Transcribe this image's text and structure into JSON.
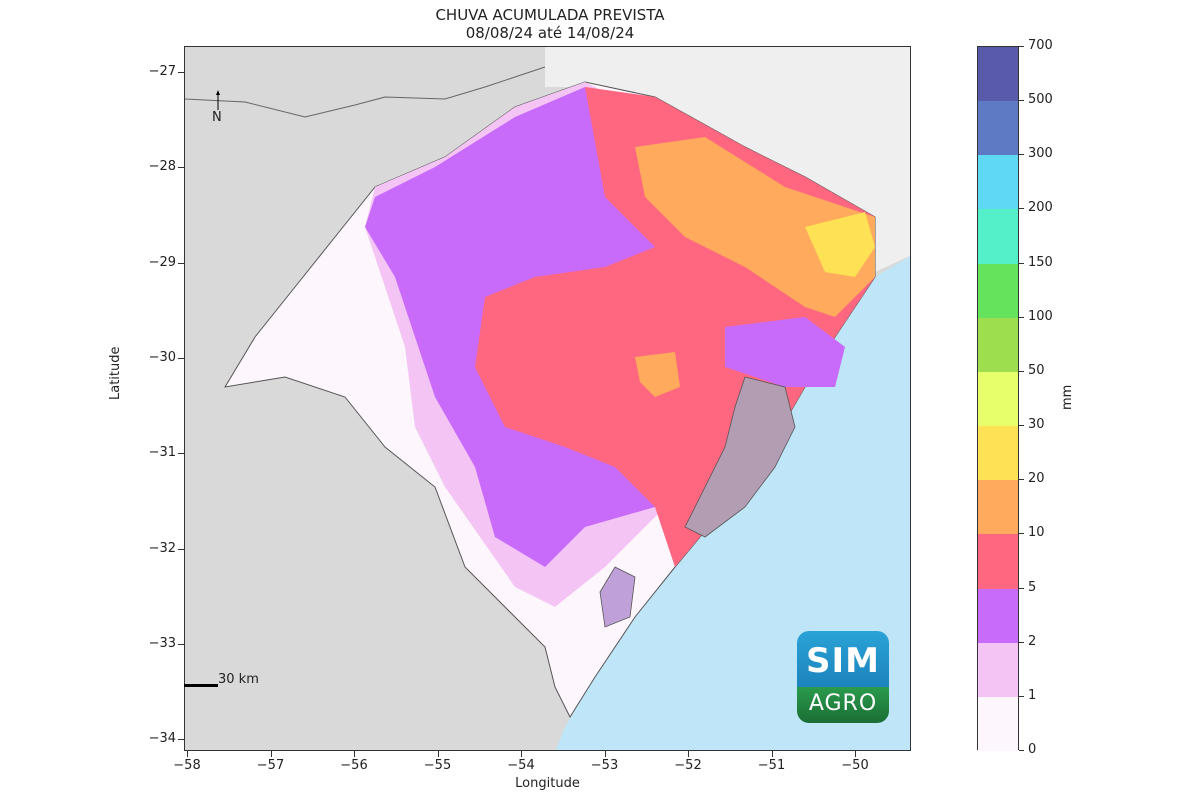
{
  "title": {
    "line1": "CHUVA ACUMULADA PREVISTA",
    "line2": "08/08/24 até 14/08/24"
  },
  "axes": {
    "xlabel": "Longitude",
    "ylabel": "Latitude",
    "xticks": [
      "−58",
      "−57",
      "−56",
      "−55",
      "−54",
      "−53",
      "−52",
      "−51",
      "−50"
    ],
    "yticks": [
      "−27",
      "−28",
      "−29",
      "−30",
      "−31",
      "−32",
      "−33",
      "−34"
    ]
  },
  "colorbar": {
    "unit": "mm",
    "labels": [
      "700",
      "500",
      "300",
      "200",
      "150",
      "100",
      "50",
      "30",
      "20",
      "10",
      "5",
      "2",
      "1",
      "0"
    ],
    "colors": [
      "#5a5aaa",
      "#5f7ac4",
      "#5fd8f6",
      "#53f0c9",
      "#66e35c",
      "#9dde4f",
      "#e7ff6a",
      "#ffe156",
      "#ffaa5c",
      "#ff6680",
      "#c86bfb",
      "#f4c5f4",
      "#fdf7fd"
    ]
  },
  "map": {
    "north_label": "N",
    "scale_label": "30 km",
    "ocean_color": "#bfe5f8",
    "land_color": "#d9d9d9"
  },
  "logo": {
    "top": "SIM",
    "bottom": "AGRO"
  }
}
